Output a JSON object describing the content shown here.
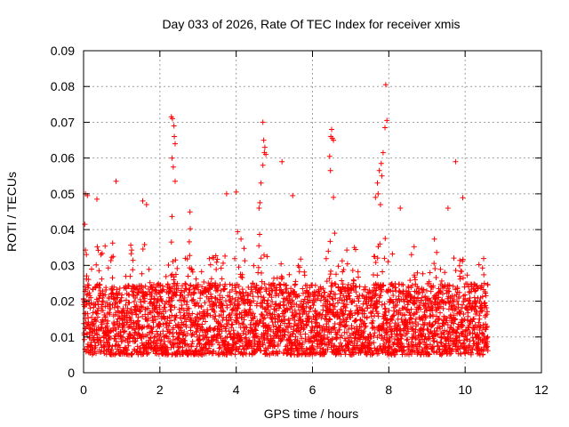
{
  "chart_data": {
    "type": "scatter",
    "title": "Day 033 of 2026, Rate Of TEC Index for receiver xmis",
    "xlabel": "GPS time / hours",
    "ylabel": "ROTI / TECUs",
    "xlim": [
      0,
      12
    ],
    "ylim": [
      0,
      0.09
    ],
    "xticks": [
      0,
      2,
      4,
      6,
      8,
      10,
      12
    ],
    "xtick_labels": [
      "0",
      "2",
      "4",
      "6",
      "8",
      "10",
      "12"
    ],
    "yticks": [
      0,
      0.01,
      0.02,
      0.03,
      0.04,
      0.05,
      0.06,
      0.07,
      0.08,
      0.09
    ],
    "ytick_labels": [
      "0",
      "0.01",
      "0.02",
      "0.03",
      "0.04",
      "0.05",
      "0.06",
      "0.07",
      "0.08",
      "0.09"
    ],
    "grid": true,
    "marker": "+",
    "color": "#ff0000",
    "data_range_hours": [
      0,
      10.6
    ],
    "typical_band": [
      0.005,
      0.025
    ],
    "notable_points": [
      {
        "x": 2.33,
        "y": 0.071
      },
      {
        "x": 2.3,
        "y": 0.0715
      },
      {
        "x": 2.37,
        "y": 0.069
      },
      {
        "x": 2.38,
        "y": 0.066
      },
      {
        "x": 2.4,
        "y": 0.064
      },
      {
        "x": 2.35,
        "y": 0.0575
      },
      {
        "x": 2.4,
        "y": 0.0535
      },
      {
        "x": 2.32,
        "y": 0.06
      },
      {
        "x": 4.7,
        "y": 0.07
      },
      {
        "x": 4.72,
        "y": 0.065
      },
      {
        "x": 4.75,
        "y": 0.063
      },
      {
        "x": 4.74,
        "y": 0.0615
      },
      {
        "x": 4.78,
        "y": 0.061
      },
      {
        "x": 4.7,
        "y": 0.058
      },
      {
        "x": 4.65,
        "y": 0.053
      },
      {
        "x": 4.62,
        "y": 0.0475
      },
      {
        "x": 4.6,
        "y": 0.046
      },
      {
        "x": 5.2,
        "y": 0.059
      },
      {
        "x": 5.48,
        "y": 0.0495
      },
      {
        "x": 6.5,
        "y": 0.068
      },
      {
        "x": 6.48,
        "y": 0.066
      },
      {
        "x": 6.52,
        "y": 0.0655
      },
      {
        "x": 6.55,
        "y": 0.065
      },
      {
        "x": 6.45,
        "y": 0.0605
      },
      {
        "x": 6.47,
        "y": 0.0565
      },
      {
        "x": 6.55,
        "y": 0.049
      },
      {
        "x": 6.58,
        "y": 0.039
      },
      {
        "x": 7.92,
        "y": 0.0805
      },
      {
        "x": 7.95,
        "y": 0.0705
      },
      {
        "x": 7.9,
        "y": 0.0685
      },
      {
        "x": 7.85,
        "y": 0.0615
      },
      {
        "x": 7.8,
        "y": 0.0585
      },
      {
        "x": 7.75,
        "y": 0.0565
      },
      {
        "x": 7.82,
        "y": 0.055
      },
      {
        "x": 7.7,
        "y": 0.053
      },
      {
        "x": 7.72,
        "y": 0.05
      },
      {
        "x": 7.65,
        "y": 0.049
      },
      {
        "x": 7.78,
        "y": 0.047
      },
      {
        "x": 0.85,
        "y": 0.0535
      },
      {
        "x": 1.55,
        "y": 0.048
      },
      {
        "x": 1.65,
        "y": 0.047
      },
      {
        "x": 3.75,
        "y": 0.05
      },
      {
        "x": 4.0,
        "y": 0.0505
      },
      {
        "x": 8.3,
        "y": 0.046
      },
      {
        "x": 9.75,
        "y": 0.059
      },
      {
        "x": 9.55,
        "y": 0.046
      },
      {
        "x": 0.05,
        "y": 0.05
      },
      {
        "x": 0.1,
        "y": 0.0495
      },
      {
        "x": 0.35,
        "y": 0.0485
      }
    ],
    "bursts": [
      {
        "center": 0.05,
        "width": 0.25,
        "peak": 0.045
      },
      {
        "center": 0.45,
        "width": 0.3,
        "peak": 0.044
      },
      {
        "center": 0.75,
        "width": 0.25,
        "peak": 0.038
      },
      {
        "center": 1.3,
        "width": 0.2,
        "peak": 0.042
      },
      {
        "center": 1.6,
        "width": 0.3,
        "peak": 0.037
      },
      {
        "center": 2.3,
        "width": 0.25,
        "peak": 0.045
      },
      {
        "center": 2.8,
        "width": 0.25,
        "peak": 0.041
      },
      {
        "center": 3.4,
        "width": 0.3,
        "peak": 0.044
      },
      {
        "center": 4.1,
        "width": 0.3,
        "peak": 0.043
      },
      {
        "center": 4.65,
        "width": 0.25,
        "peak": 0.045
      },
      {
        "center": 5.2,
        "width": 0.3,
        "peak": 0.037
      },
      {
        "center": 5.7,
        "width": 0.25,
        "peak": 0.035
      },
      {
        "center": 6.45,
        "width": 0.3,
        "peak": 0.039
      },
      {
        "center": 7.0,
        "width": 0.4,
        "peak": 0.037
      },
      {
        "center": 7.75,
        "width": 0.35,
        "peak": 0.045
      },
      {
        "center": 8.6,
        "width": 0.3,
        "peak": 0.037
      },
      {
        "center": 9.2,
        "width": 0.25,
        "peak": 0.034
      },
      {
        "center": 9.9,
        "width": 0.4,
        "peak": 0.043
      },
      {
        "center": 10.45,
        "width": 0.25,
        "peak": 0.04
      }
    ]
  }
}
